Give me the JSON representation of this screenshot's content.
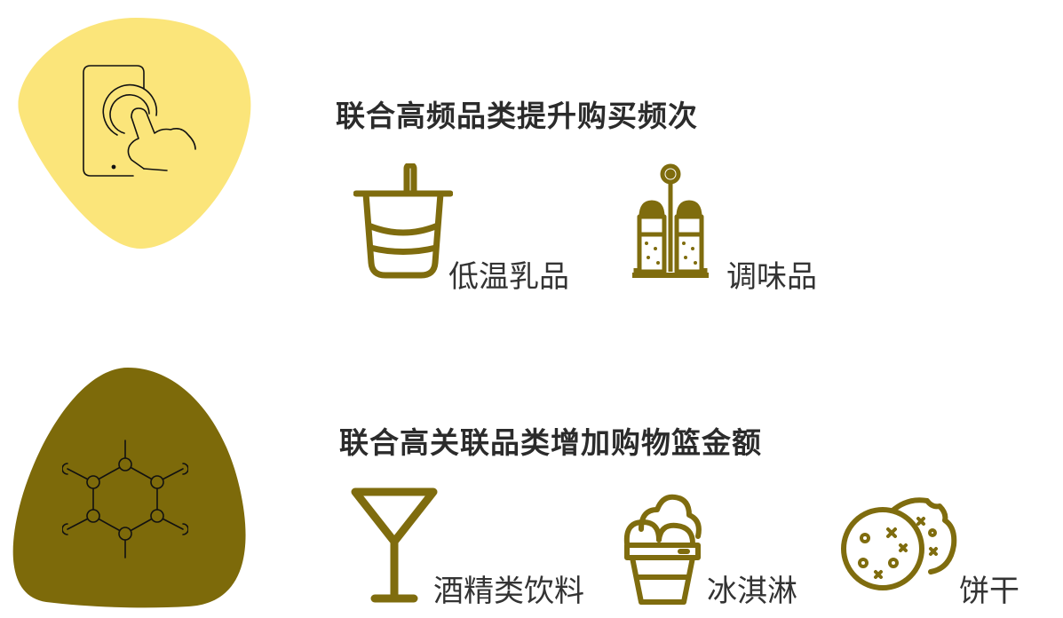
{
  "colors": {
    "light_blob": "#fbe57a",
    "dark_blob": "#7d6a0a",
    "icon_gold": "#7f6c0e",
    "heading_text": "#2b2b2b",
    "label_text": "#333333"
  },
  "section1": {
    "badge_icon": "touch-phone-icon",
    "heading": "联合高频品类提升购买频次",
    "items": [
      {
        "icon": "yogurt-cup-icon",
        "label": "低温乳品"
      },
      {
        "icon": "condiment-set-icon",
        "label": "调味品"
      }
    ]
  },
  "section2": {
    "badge_icon": "molecule-network-icon",
    "heading": "联合高关联品类增加购物篮金额",
    "items": [
      {
        "icon": "cocktail-glass-icon",
        "label": "酒精类饮料"
      },
      {
        "icon": "ice-cream-icon",
        "label": "冰淇淋"
      },
      {
        "icon": "cookies-icon",
        "label": "饼干"
      }
    ]
  }
}
